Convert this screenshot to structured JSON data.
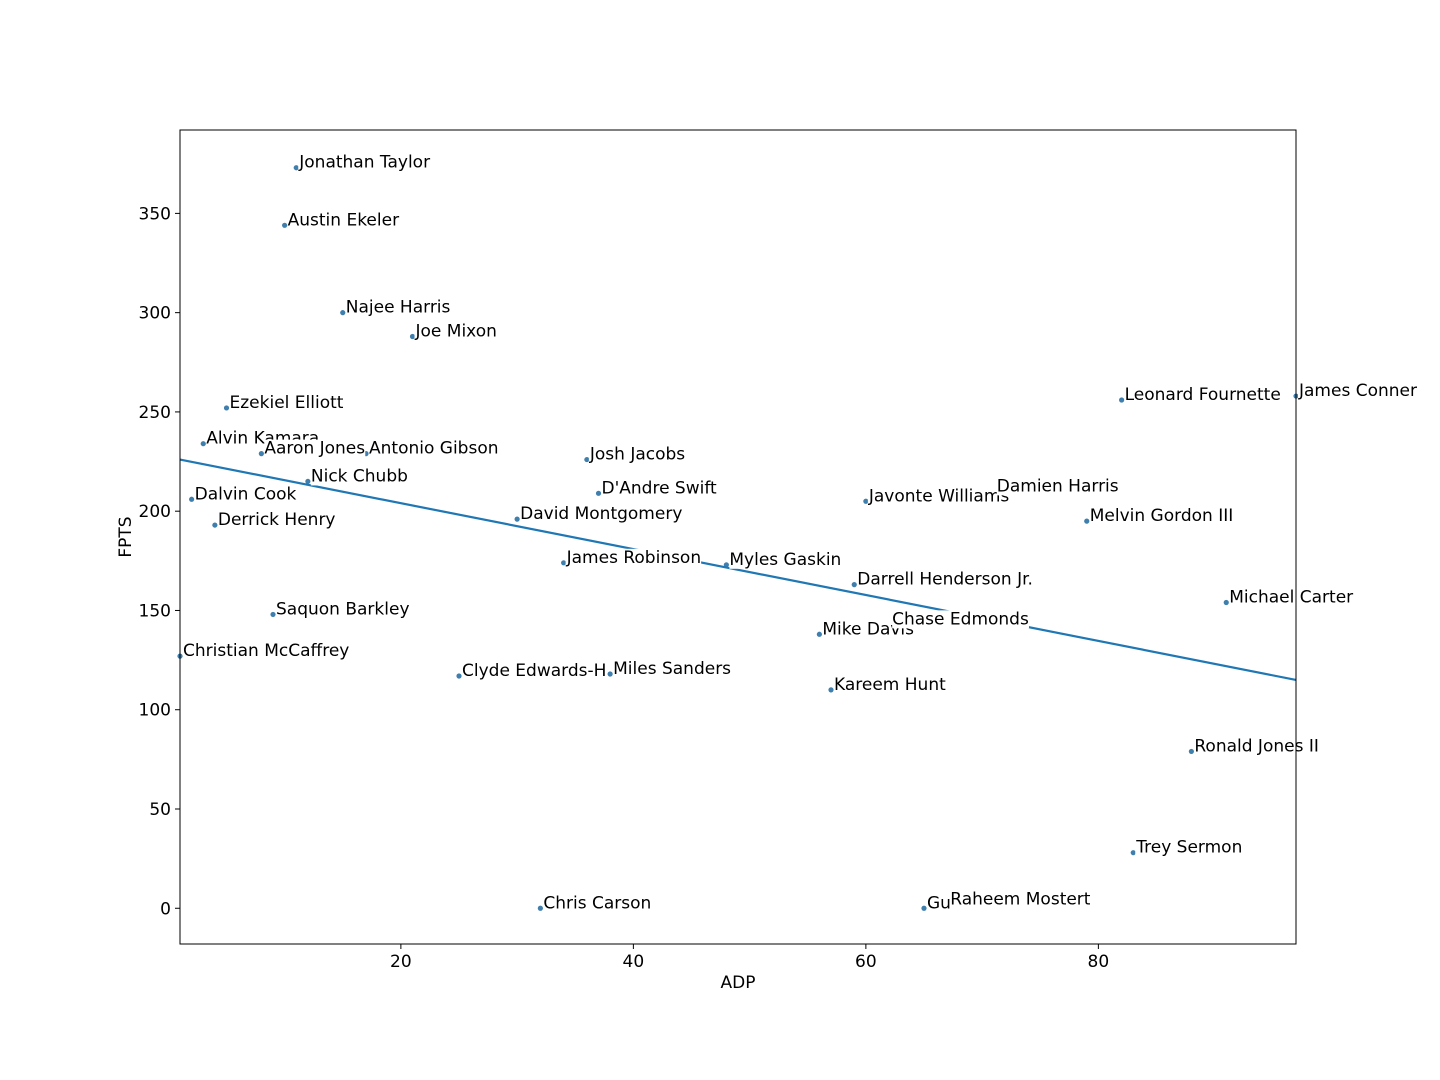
{
  "colors": {
    "point": "#3f7fae",
    "line": "#1f77b4",
    "axes": "#000000",
    "background": "#ffffff",
    "label_mask": "#ffffff"
  },
  "chart_data": {
    "type": "scatter",
    "title": "",
    "xlabel": "ADP",
    "ylabel": "FPTS",
    "xlim": [
      1,
      97
    ],
    "ylim": [
      -18,
      392
    ],
    "xticks": [
      20,
      40,
      60,
      80
    ],
    "yticks": [
      0,
      50,
      100,
      150,
      200,
      250,
      300,
      350
    ],
    "grid": false,
    "legend": "none",
    "trendline": {
      "x": [
        1,
        97
      ],
      "y": [
        226,
        115
      ]
    },
    "points": [
      {
        "name": "Jonathan Taylor",
        "x": 11,
        "y": 373
      },
      {
        "name": "Austin Ekeler",
        "x": 10,
        "y": 344
      },
      {
        "name": "Najee Harris",
        "x": 15,
        "y": 300
      },
      {
        "name": "Joe Mixon",
        "x": 21,
        "y": 288
      },
      {
        "name": "Ezekiel Elliott",
        "x": 5,
        "y": 252
      },
      {
        "name": "Alvin Kamara",
        "x": 3,
        "y": 234
      },
      {
        "name": "Aaron Jones",
        "x": 8,
        "y": 229
      },
      {
        "name": "Antonio Gibson",
        "x": 17,
        "y": 229
      },
      {
        "name": "Nick Chubb",
        "x": 12,
        "y": 215
      },
      {
        "name": "Dalvin Cook",
        "x": 2,
        "y": 206
      },
      {
        "name": "Derrick Henry",
        "x": 4,
        "y": 193
      },
      {
        "name": "Saquon Barkley",
        "x": 9,
        "y": 148
      },
      {
        "name": "Christian McCaffrey",
        "x": 1,
        "y": 127
      },
      {
        "name": "Josh Jacobs",
        "x": 36,
        "y": 226
      },
      {
        "name": "D'Andre Swift",
        "x": 37,
        "y": 209
      },
      {
        "name": "David Montgomery",
        "x": 30,
        "y": 196
      },
      {
        "name": "James Robinson",
        "x": 34,
        "y": 174
      },
      {
        "name": "Clyde Edwards-H",
        "x": 25,
        "y": 117
      },
      {
        "name": "Miles Sanders",
        "x": 38,
        "y": 118
      },
      {
        "name": "Chris Carson",
        "x": 32,
        "y": 0
      },
      {
        "name": "Myles Gaskin",
        "x": 48,
        "y": 173
      },
      {
        "name": "Javonte Williams",
        "x": 60,
        "y": 205
      },
      {
        "name": "Damien Harris",
        "x": 71,
        "y": 210
      },
      {
        "name": "Darrell Henderson Jr.",
        "x": 59,
        "y": 163
      },
      {
        "name": "Mike Davis",
        "x": 56,
        "y": 138
      },
      {
        "name": "Chase Edmonds",
        "x": 62,
        "y": 143
      },
      {
        "name": "Kareem Hunt",
        "x": 57,
        "y": 110
      },
      {
        "name": "Gu",
        "x": 65,
        "y": 0
      },
      {
        "name": "Raheem Mostert",
        "x": 67,
        "y": 2
      },
      {
        "name": "Leonard Fournette",
        "x": 82,
        "y": 256
      },
      {
        "name": "James Conner",
        "x": 97,
        "y": 258
      },
      {
        "name": "Melvin Gordon III",
        "x": 79,
        "y": 195
      },
      {
        "name": "Michael Carter",
        "x": 91,
        "y": 154
      },
      {
        "name": "Ronald Jones II",
        "x": 88,
        "y": 79
      },
      {
        "name": "Trey Sermon",
        "x": 83,
        "y": 28
      }
    ]
  }
}
